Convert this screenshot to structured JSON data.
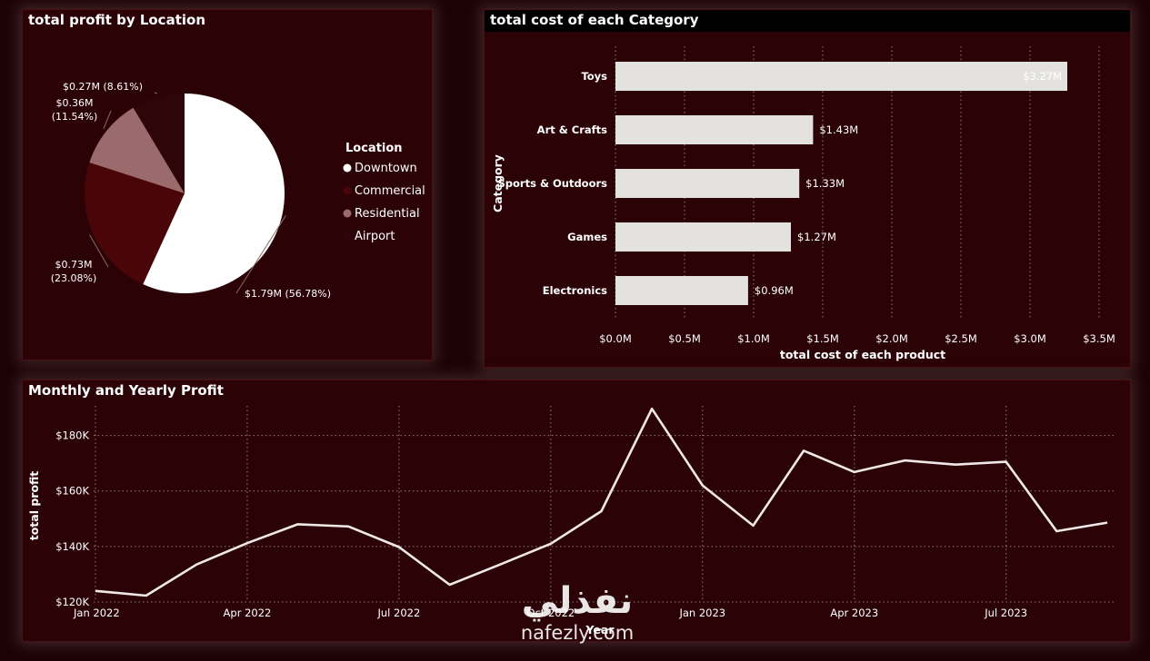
{
  "pie_panel": {
    "title": "total profit by Location",
    "legend_title": "Location"
  },
  "bar_panel": {
    "title": "total cost of each Category"
  },
  "line_panel": {
    "title": "Monthly and Yearly Profit"
  },
  "watermark": {
    "arabic": "نفذلي",
    "latin": "nafezly.com"
  },
  "chart_data": [
    {
      "type": "pie",
      "title": "total profit by Location",
      "legend_title": "Location",
      "slices": [
        {
          "name": "Downtown",
          "value": 1.79,
          "label": "$1.79M (56.78%)",
          "color": "#ffffff"
        },
        {
          "name": "Commercial",
          "value": 0.73,
          "label": "$0.73M\n(23.08%)",
          "color": "#4a0508"
        },
        {
          "name": "Residential",
          "value": 0.36,
          "label": "$0.36M\n(11.54%)",
          "color": "#9b6a6c"
        },
        {
          "name": "Airport",
          "value": 0.27,
          "label": "$0.27M (8.61%)",
          "color": "#2e0508"
        }
      ]
    },
    {
      "type": "bar",
      "orientation": "horizontal",
      "title": "total cost of each Category",
      "categories": [
        "Toys",
        "Art & Crafts",
        "Sports & Outdoors",
        "Games",
        "Electronics"
      ],
      "values": [
        3.27,
        1.43,
        1.33,
        1.27,
        0.96
      ],
      "data_labels": [
        "$3.27M",
        "$1.43M",
        "$1.33M",
        "$1.27M",
        "$0.96M"
      ],
      "xlabel": "total cost of each product",
      "ylabel": "Category",
      "xlim": [
        0,
        3.5
      ],
      "x_ticks": [
        "$0.0M",
        "$0.5M",
        "$1.0M",
        "$1.5M",
        "$2.0M",
        "$2.5M",
        "$3.0M",
        "$3.5M"
      ],
      "bar_color": "#e4e2de",
      "grid": true
    },
    {
      "type": "line",
      "title": "Monthly and Yearly Profit",
      "xlabel": "Year",
      "ylabel": "total profit",
      "x": [
        "2022-01",
        "2022-02",
        "2022-03",
        "2022-04",
        "2022-05",
        "2022-06",
        "2022-07",
        "2022-08",
        "2022-09",
        "2022-10",
        "2022-11",
        "2022-12",
        "2023-01",
        "2023-02",
        "2023-03",
        "2023-04",
        "2023-05",
        "2023-06",
        "2023-07",
        "2023-08",
        "2023-09"
      ],
      "values": [
        124000,
        122300,
        133500,
        141200,
        148000,
        147200,
        139800,
        126200,
        133500,
        141000,
        152700,
        189600,
        162000,
        147500,
        174500,
        166800,
        171000,
        169500,
        170500,
        145500,
        148600
      ],
      "ylim": [
        120000,
        190000
      ],
      "y_ticks": [
        "$120K",
        "$140K",
        "$160K",
        "$180K"
      ],
      "x_ticks": [
        "Jan 2022",
        "Apr 2022",
        "Jul 2022",
        "Oct 2022",
        "Jan 2023",
        "Apr 2023",
        "Jul 2023"
      ],
      "line_color": "#f0e8e6",
      "grid": true
    }
  ]
}
